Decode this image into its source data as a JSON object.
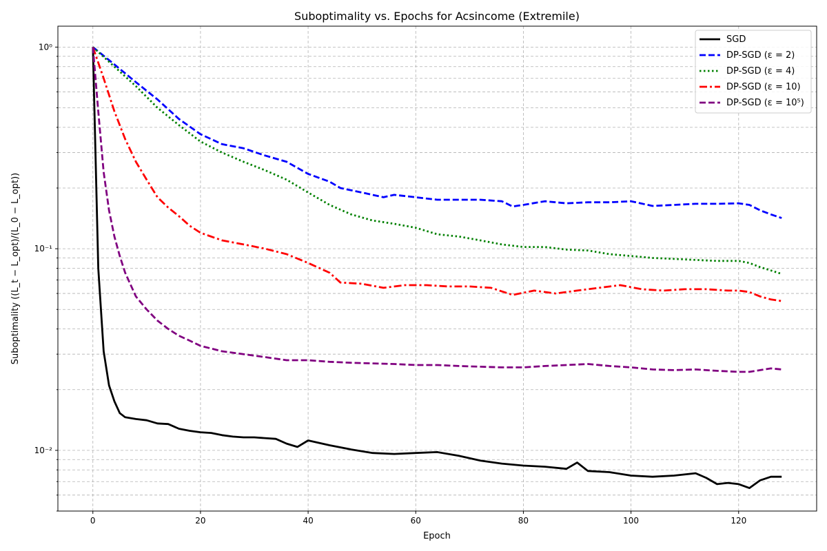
{
  "chart_data": {
    "type": "line",
    "title": "Suboptimality vs. Epochs for Acsincome (Extremile)",
    "xlabel": "Epoch",
    "ylabel": "Suboptimality ((L_t − L_opt)/(L_0 − L_opt))",
    "xlim": [
      -6.5,
      134.5
    ],
    "ylim": [
      0.005,
      1.27
    ],
    "yscale": "log",
    "grid": true,
    "legend_position": "top-right",
    "x_ticks": [
      0,
      20,
      40,
      60,
      80,
      100,
      120
    ],
    "x_tick_labels": [
      "0",
      "20",
      "40",
      "60",
      "80",
      "100",
      "120"
    ],
    "y_ticks": [
      0.01,
      0.1,
      1
    ],
    "y_tick_labels": [
      "10⁻²",
      "10⁻¹",
      "10⁰"
    ],
    "series": [
      {
        "name": "SGD",
        "color": "#000000",
        "style": "solid",
        "x": [
          0,
          1,
          2,
          3,
          4,
          5,
          6,
          8,
          10,
          12,
          14,
          16,
          18,
          20,
          22,
          24,
          26,
          28,
          30,
          32,
          34,
          36,
          38,
          40,
          44,
          48,
          52,
          56,
          60,
          64,
          68,
          72,
          76,
          80,
          84,
          88,
          90,
          92,
          96,
          100,
          104,
          108,
          112,
          114,
          116,
          118,
          120,
          122,
          124,
          126,
          128
        ],
        "values": [
          1.0,
          0.08,
          0.031,
          0.021,
          0.0175,
          0.0153,
          0.0146,
          0.0143,
          0.0141,
          0.0136,
          0.0135,
          0.0128,
          0.0125,
          0.0123,
          0.0122,
          0.0119,
          0.0117,
          0.0116,
          0.0116,
          0.0115,
          0.0114,
          0.0108,
          0.0104,
          0.0112,
          0.0106,
          0.0101,
          0.0097,
          0.0096,
          0.0097,
          0.0098,
          0.0094,
          0.0089,
          0.0086,
          0.0084,
          0.0083,
          0.0081,
          0.0087,
          0.0079,
          0.0078,
          0.0075,
          0.0074,
          0.0075,
          0.0077,
          0.0073,
          0.0068,
          0.0069,
          0.0068,
          0.0065,
          0.0071,
          0.0074,
          0.0074
        ]
      },
      {
        "name": "DP-SGD (ε = 2)",
        "color": "#0000ff",
        "style": "dashed",
        "x": [
          0,
          4,
          8,
          12,
          16,
          20,
          24,
          28,
          32,
          36,
          40,
          44,
          46,
          50,
          54,
          56,
          60,
          64,
          68,
          72,
          76,
          78,
          80,
          84,
          88,
          92,
          96,
          100,
          104,
          108,
          112,
          116,
          120,
          122,
          124,
          126,
          128
        ],
        "values": [
          1.0,
          0.82,
          0.67,
          0.55,
          0.44,
          0.37,
          0.33,
          0.315,
          0.29,
          0.27,
          0.235,
          0.215,
          0.2,
          0.19,
          0.18,
          0.185,
          0.18,
          0.175,
          0.175,
          0.175,
          0.172,
          0.162,
          0.165,
          0.172,
          0.168,
          0.17,
          0.17,
          0.172,
          0.163,
          0.165,
          0.167,
          0.167,
          0.168,
          0.165,
          0.155,
          0.148,
          0.142
        ]
      },
      {
        "name": "DP-SGD (ε = 4)",
        "color": "#008000",
        "style": "dotted",
        "x": [
          0,
          4,
          8,
          12,
          16,
          20,
          24,
          28,
          32,
          36,
          40,
          44,
          48,
          52,
          56,
          60,
          64,
          68,
          72,
          76,
          80,
          84,
          88,
          92,
          96,
          100,
          104,
          108,
          112,
          116,
          120,
          122,
          124,
          126,
          128
        ],
        "values": [
          1.0,
          0.8,
          0.64,
          0.5,
          0.41,
          0.34,
          0.3,
          0.27,
          0.245,
          0.22,
          0.19,
          0.165,
          0.148,
          0.138,
          0.133,
          0.127,
          0.118,
          0.115,
          0.11,
          0.105,
          0.102,
          0.102,
          0.099,
          0.098,
          0.094,
          0.092,
          0.09,
          0.089,
          0.088,
          0.087,
          0.087,
          0.085,
          0.081,
          0.078,
          0.075
        ]
      },
      {
        "name": "DP-SGD (ε = 10)",
        "color": "#ff0000",
        "style": "dashdot",
        "x": [
          0,
          2,
          4,
          6,
          8,
          10,
          12,
          14,
          16,
          18,
          20,
          24,
          28,
          32,
          36,
          40,
          44,
          46,
          50,
          54,
          58,
          62,
          66,
          70,
          74,
          78,
          82,
          86,
          90,
          94,
          98,
          102,
          106,
          110,
          114,
          118,
          120,
          122,
          124,
          126,
          128
        ],
        "values": [
          1.0,
          0.7,
          0.48,
          0.35,
          0.27,
          0.22,
          0.18,
          0.16,
          0.145,
          0.13,
          0.12,
          0.11,
          0.105,
          0.1,
          0.094,
          0.085,
          0.076,
          0.068,
          0.067,
          0.064,
          0.066,
          0.066,
          0.065,
          0.065,
          0.064,
          0.059,
          0.062,
          0.06,
          0.062,
          0.064,
          0.066,
          0.063,
          0.062,
          0.063,
          0.063,
          0.062,
          0.062,
          0.061,
          0.058,
          0.056,
          0.055
        ]
      },
      {
        "name": "DP-SGD (ε = 10⁵)",
        "color": "#800080",
        "style": "dashed",
        "x": [
          0,
          1,
          2,
          3,
          4,
          5,
          6,
          8,
          10,
          12,
          14,
          16,
          18,
          20,
          24,
          28,
          32,
          36,
          40,
          44,
          48,
          52,
          56,
          60,
          64,
          68,
          72,
          76,
          80,
          84,
          88,
          92,
          96,
          100,
          104,
          108,
          112,
          116,
          120,
          122,
          124,
          126,
          128
        ],
        "values": [
          1.0,
          0.48,
          0.24,
          0.155,
          0.115,
          0.092,
          0.076,
          0.058,
          0.05,
          0.044,
          0.04,
          0.037,
          0.035,
          0.033,
          0.031,
          0.03,
          0.029,
          0.028,
          0.028,
          0.0275,
          0.0272,
          0.027,
          0.0268,
          0.0265,
          0.0265,
          0.0262,
          0.026,
          0.0258,
          0.0258,
          0.0262,
          0.0265,
          0.0268,
          0.0262,
          0.0258,
          0.0252,
          0.025,
          0.0252,
          0.0248,
          0.0245,
          0.0245,
          0.025,
          0.0255,
          0.0252
        ]
      }
    ]
  }
}
